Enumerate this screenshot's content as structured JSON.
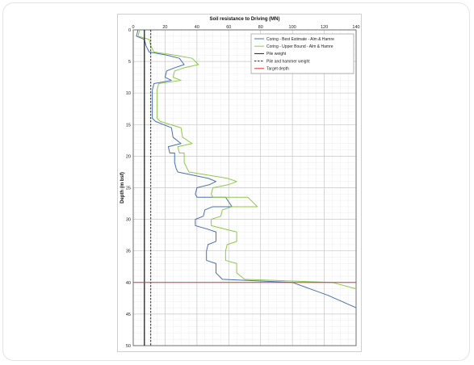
{
  "chart_data": {
    "type": "line",
    "title": "Soil resistance to Driving (MN)",
    "xlabel": "Soil resistance to Driving (MN)",
    "ylabel": "Depth (m bsf)",
    "xlim": [
      0,
      140
    ],
    "ylim": [
      0,
      50
    ],
    "y_inverted": true,
    "x_axis_position": "top",
    "x_ticks": [
      0,
      20,
      40,
      60,
      80,
      100,
      120,
      140
    ],
    "y_ticks": [
      0,
      5,
      10,
      15,
      20,
      25,
      30,
      35,
      40,
      45,
      50
    ],
    "grid": true,
    "legend_position": "top-right",
    "series": [
      {
        "name": "Coring - Best Estimate - Alm & Hamre",
        "color": "#4a6fb0",
        "style": "solid",
        "points": [
          [
            3,
            0
          ],
          [
            2,
            1
          ],
          [
            7,
            1.5
          ],
          [
            8,
            2.5
          ],
          [
            10,
            3.5
          ],
          [
            21,
            4
          ],
          [
            29,
            4.5
          ],
          [
            32,
            5.5
          ],
          [
            26,
            6
          ],
          [
            21,
            6.5
          ],
          [
            20,
            7.5
          ],
          [
            24,
            8
          ],
          [
            13,
            8.5
          ],
          [
            12,
            9.5
          ],
          [
            12,
            10.5
          ],
          [
            12,
            12
          ],
          [
            12,
            14
          ],
          [
            14,
            14.5
          ],
          [
            24,
            15.5
          ],
          [
            25,
            17
          ],
          [
            30,
            18
          ],
          [
            22,
            18.5
          ],
          [
            23,
            19.5
          ],
          [
            26,
            19.5
          ],
          [
            26,
            21
          ],
          [
            27,
            22
          ],
          [
            28,
            22.5
          ],
          [
            47,
            23.5
          ],
          [
            52,
            24
          ],
          [
            48,
            24.5
          ],
          [
            40,
            25
          ],
          [
            39,
            26
          ],
          [
            40,
            26.5
          ],
          [
            58,
            26.5
          ],
          [
            62,
            28
          ],
          [
            50,
            28
          ],
          [
            45,
            28.5
          ],
          [
            44,
            29.5
          ],
          [
            39,
            30
          ],
          [
            39,
            31
          ],
          [
            46,
            31.5
          ],
          [
            52,
            32
          ],
          [
            52,
            33.5
          ],
          [
            47,
            34
          ],
          [
            46,
            35
          ],
          [
            46,
            36.5
          ],
          [
            52,
            37
          ],
          [
            52,
            38.5
          ],
          [
            56,
            39.5
          ],
          [
            100,
            40
          ],
          [
            122,
            42
          ],
          [
            140,
            44
          ]
        ]
      },
      {
        "name": "Coring - Upper Bound - Alm & Hamre",
        "color": "#8fc94a",
        "style": "solid",
        "points": [
          [
            4,
            0
          ],
          [
            3,
            1
          ],
          [
            10,
            1.5
          ],
          [
            11,
            2.5
          ],
          [
            13,
            3.5
          ],
          [
            26,
            4
          ],
          [
            37,
            4.5
          ],
          [
            41,
            5.5
          ],
          [
            32,
            6
          ],
          [
            26,
            6.5
          ],
          [
            25,
            7.5
          ],
          [
            30,
            8
          ],
          [
            16,
            8.5
          ],
          [
            15,
            9.5
          ],
          [
            15,
            10.5
          ],
          [
            15,
            12
          ],
          [
            15,
            14
          ],
          [
            17,
            14.5
          ],
          [
            30,
            15.5
          ],
          [
            31,
            17
          ],
          [
            37,
            18
          ],
          [
            28,
            18.5
          ],
          [
            29,
            19.5
          ],
          [
            32,
            19.5
          ],
          [
            32,
            21
          ],
          [
            34,
            22
          ],
          [
            35,
            22.5
          ],
          [
            59,
            23.5
          ],
          [
            65,
            24
          ],
          [
            60,
            24.5
          ],
          [
            50,
            25
          ],
          [
            49,
            26
          ],
          [
            50,
            26.5
          ],
          [
            72,
            26.5
          ],
          [
            78,
            28
          ],
          [
            62,
            28
          ],
          [
            56,
            28.5
          ],
          [
            55,
            29.5
          ],
          [
            49,
            30
          ],
          [
            49,
            31
          ],
          [
            57,
            31.5
          ],
          [
            65,
            32
          ],
          [
            65,
            33.5
          ],
          [
            59,
            34
          ],
          [
            58,
            35
          ],
          [
            58,
            36.5
          ],
          [
            65,
            37
          ],
          [
            65,
            38.5
          ],
          [
            70,
            39.5
          ],
          [
            125,
            40
          ],
          [
            140,
            41
          ]
        ]
      },
      {
        "name": "Pile weight",
        "color": "#222222",
        "style": "solid",
        "points": [
          [
            7,
            0
          ],
          [
            7,
            50
          ]
        ]
      },
      {
        "name": "Pile and hammer weight",
        "color": "#222222",
        "style": "dashed",
        "points": [
          [
            11,
            0
          ],
          [
            11,
            50
          ]
        ]
      },
      {
        "name": "Target depth",
        "color": "#e03030",
        "style": "solid",
        "points": [
          [
            0,
            40
          ],
          [
            140,
            40
          ]
        ]
      }
    ]
  }
}
